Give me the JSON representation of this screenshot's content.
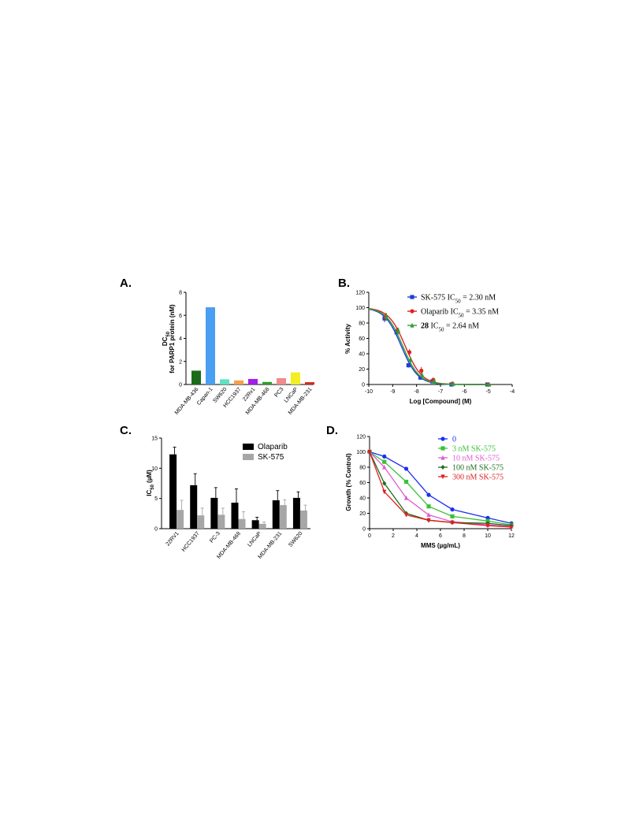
{
  "figure": {
    "panels": [
      "A.",
      "B.",
      "C.",
      "D."
    ]
  },
  "colors": {
    "blue": "#1f3fd6",
    "red": "#e0221f",
    "green": "#2e9e3a",
    "d_blue": "#1a2ff0",
    "d_green": "#39c23a",
    "d_magenta": "#e05bd3",
    "d_darkgreen": "#1f6e1f",
    "d_red": "#e01f1f",
    "olaparib": "#000000",
    "sk575": "#a6a6a6"
  },
  "chart_data": [
    {
      "panel": "A.",
      "type": "bar",
      "ylabel_line1": "DC",
      "ylabel_sub": "50",
      "ylabel_line2": "for PARP1 protein (nM)",
      "ylim": [
        0,
        8
      ],
      "yticks": [
        "0",
        "2",
        "4",
        "6",
        "8"
      ],
      "categories": [
        "MDA-MB-436",
        "Capan-1",
        "SW620",
        "HCC1937",
        "22Rv1",
        "MDA-MB-468",
        "PC3",
        "LNCaP",
        "MDA-MB-231"
      ],
      "values": [
        1.2,
        6.7,
        0.45,
        0.35,
        0.48,
        0.22,
        0.55,
        1.05,
        0.2
      ],
      "bar_colors": [
        "#1a6b1a",
        "#4a9ff2",
        "#5fe0c2",
        "#f5a04a",
        "#a21ee8",
        "#2ba02b",
        "#f28b8b",
        "#f2ee24",
        "#d42a1a"
      ],
      "grid": false
    },
    {
      "panel": "B.",
      "type": "line",
      "xlabel": "Log [Compound] (M)",
      "ylabel": "% Activity",
      "xlim": [
        -10,
        -4
      ],
      "ylim": [
        0,
        120
      ],
      "xticks": [
        "-10",
        "-9",
        "-8",
        "-7",
        "-6",
        "-5",
        "-4"
      ],
      "yticks": [
        "0",
        "20",
        "40",
        "60",
        "80",
        "100",
        "120"
      ],
      "x": [
        -9.3,
        -8.8,
        -8.3,
        -7.8,
        -7.3,
        -6.5,
        -5
      ],
      "series": [
        {
          "name": "SK-575 IC",
          "sub": "50",
          "rest": " = 2.30 nM",
          "bold": "",
          "marker": "square",
          "ic50": 2.3,
          "values": [
            86,
            68,
            25,
            9,
            4,
            0,
            0
          ],
          "err": [
            5,
            5,
            3,
            3,
            2,
            1,
            1
          ]
        },
        {
          "name": "Olaparib IC",
          "sub": "50",
          "rest": " = 3.35 nM",
          "bold": "",
          "marker": "circle",
          "ic50": 3.35,
          "values": [
            88,
            70,
            42,
            18,
            6,
            1,
            0
          ],
          "err": [
            5,
            4,
            4,
            5,
            3,
            1,
            1
          ]
        },
        {
          "name": " IC",
          "sub": "50",
          "rest": " = 2.64 nM",
          "bold": "28",
          "marker": "triangle",
          "ic50": 2.64,
          "values": [
            88,
            70,
            32,
            12,
            5,
            1,
            0
          ],
          "err": [
            5,
            4,
            4,
            4,
            3,
            1,
            1
          ]
        }
      ],
      "legend": "top-right",
      "grid": false
    },
    {
      "panel": "C.",
      "type": "bar",
      "ylabel_main": "IC",
      "ylabel_sub": "50",
      "ylabel_unit": " (µM)",
      "ylim": [
        0,
        15
      ],
      "yticks": [
        "0",
        "5",
        "10",
        "15"
      ],
      "categories": [
        "22RV1",
        "HCC1937",
        "PC-3",
        "MDA-MB-468",
        "LNCaP",
        "MDA-MB-231",
        "SW620"
      ],
      "series": [
        {
          "name": "Olaparib",
          "values": [
            12.3,
            7.2,
            5.1,
            4.3,
            1.4,
            4.7,
            5.1
          ],
          "err": [
            1.2,
            1.9,
            1.7,
            2.3,
            0.5,
            1.6,
            1.0
          ]
        },
        {
          "name": "SK-575",
          "values": [
            3.1,
            2.2,
            2.3,
            1.6,
            0.8,
            3.9,
            3.0
          ],
          "err": [
            1.6,
            1.2,
            1.1,
            1.2,
            0.3,
            0.9,
            0.9
          ]
        }
      ],
      "legend": "top-right",
      "grid": false
    },
    {
      "panel": "D.",
      "type": "line",
      "xlabel": "MMS (µg/mL)",
      "ylabel": "Growth (% Control)",
      "xlim": [
        0,
        12
      ],
      "ylim": [
        0,
        120
      ],
      "xticks": [
        "0",
        "2",
        "4",
        "6",
        "8",
        "10",
        "12"
      ],
      "yticks": [
        "0",
        "20",
        "40",
        "60",
        "80",
        "100",
        "120"
      ],
      "x": [
        0,
        1.25,
        3.1,
        5,
        7,
        10,
        12
      ],
      "series": [
        {
          "name": "0",
          "marker": "circle",
          "values": [
            100,
            94,
            78,
            44,
            25,
            14,
            7
          ]
        },
        {
          "name": "3 nM SK-575",
          "marker": "square",
          "values": [
            100,
            87,
            61,
            29,
            16,
            10,
            5
          ]
        },
        {
          "name": "10 nM SK-575",
          "marker": "triangle",
          "values": [
            100,
            80,
            40,
            18,
            9,
            5,
            3
          ]
        },
        {
          "name": "100 nM SK-575",
          "marker": "diamond",
          "values": [
            100,
            59,
            20,
            11,
            8,
            7,
            4
          ]
        },
        {
          "name": "300 nM SK-575",
          "marker": "tridown",
          "values": [
            100,
            48,
            18,
            11,
            8,
            4,
            2
          ]
        }
      ],
      "legend": "top-right",
      "grid": false
    }
  ]
}
